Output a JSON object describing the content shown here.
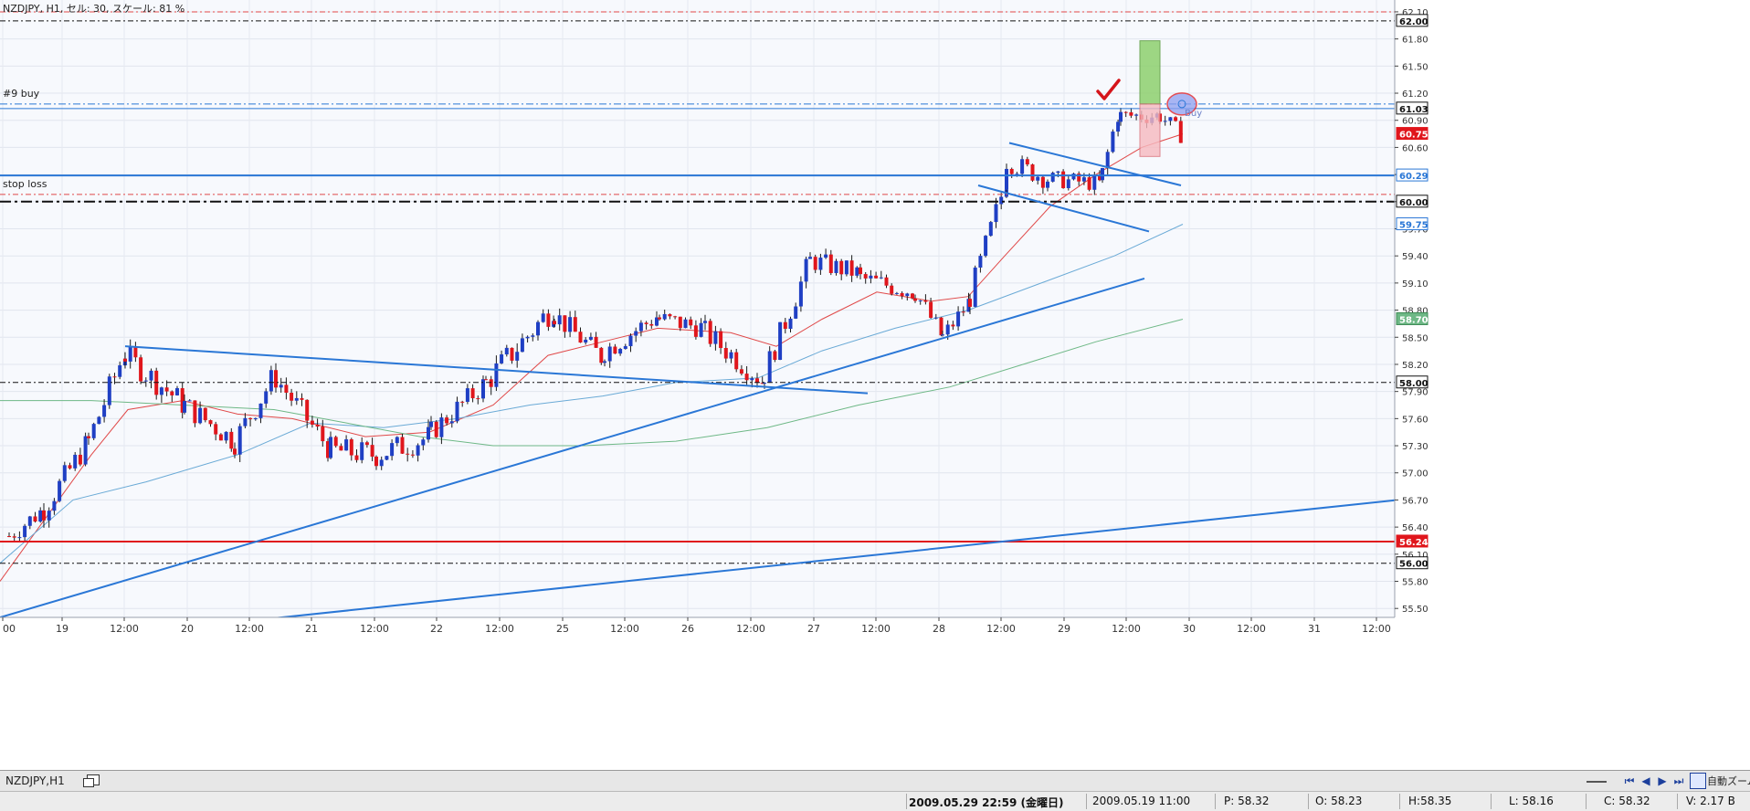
{
  "header": {
    "info": "NZDJPY, H1, セル: 30, スケール: 81 %"
  },
  "line_labels": {
    "buy": "#9 buy",
    "stop": "stop loss"
  },
  "tabbar": {
    "tab_label": "NZDJPY,H1",
    "autozoom_label": "自動ズーム"
  },
  "statusbar": {
    "current_time": "2009.05.29 22:59 (金曜日)",
    "bar_time": "2009.05.19 11:00",
    "p": "P: 58.32",
    "o": "O: 58.23",
    "h": "H:58.35",
    "l": "L: 58.16",
    "c": "C: 58.32",
    "v": "V: 2.17 B"
  },
  "colors": {
    "bull": "#1f3fc4",
    "bear": "#e0161c",
    "ma_fast": "#e04848",
    "ma_mid": "#6aaad6",
    "ma_slow": "#6eb886",
    "trendline": "#2a77d6"
  },
  "chart_data": {
    "type": "candlestick",
    "symbol": "NZDJPY",
    "timeframe": "H1",
    "ylim": [
      55.3,
      62.15
    ],
    "y_ticks": [
      "62.10",
      "61.80",
      "61.50",
      "61.20",
      "60.90",
      "60.60",
      "60.30",
      "60.00",
      "59.70",
      "59.40",
      "59.10",
      "58.80",
      "58.50",
      "58.20",
      "57.90",
      "57.60",
      "57.30",
      "57.00",
      "56.70",
      "56.40",
      "56.10",
      "55.80",
      "55.50"
    ],
    "x_ticks": [
      "00",
      "19",
      "12:00",
      "20",
      "12:00",
      "21",
      "12:00",
      "22",
      "12:00",
      "25",
      "12:00",
      "26",
      "12:00",
      "27",
      "12:00",
      "28",
      "12:00",
      "29",
      "12:00",
      "30",
      "12:00",
      "31",
      "12:00"
    ],
    "price_labels": [
      {
        "value": 62.0,
        "text": "62.00",
        "style": "dark"
      },
      {
        "value": 61.03,
        "text": "61.03",
        "style": "dark"
      },
      {
        "value": 60.75,
        "text": "60.75",
        "style": "red"
      },
      {
        "value": 60.29,
        "text": "60.29",
        "style": "blue"
      },
      {
        "value": 60.0,
        "text": "60.00",
        "style": "dark"
      },
      {
        "value": 59.75,
        "text": "59.75",
        "style": "blue"
      },
      {
        "value": 58.7,
        "text": "58.70",
        "style": "green"
      },
      {
        "value": 58.0,
        "text": "58.00",
        "style": "dark"
      },
      {
        "value": 56.24,
        "text": "56.24",
        "style": "red"
      },
      {
        "value": 56.0,
        "text": "56.00",
        "style": "dark"
      }
    ],
    "horizontal_lines": [
      {
        "value": 62.1,
        "color": "#e04848",
        "dash": "6,3,2,3",
        "width": 1
      },
      {
        "value": 62.0,
        "color": "#111111",
        "dash": "6,3,2,3",
        "width": 1
      },
      {
        "value": 61.08,
        "color": "#2a77d6",
        "dash": "8,3,2,3",
        "width": 1
      },
      {
        "value": 61.03,
        "color": "#2a77d6",
        "dash": "",
        "width": 1
      },
      {
        "value": 60.29,
        "color": "#2a77d6",
        "dash": "",
        "width": 2
      },
      {
        "value": 60.08,
        "color": "#e04848",
        "dash": "6,3,2,3",
        "width": 1
      },
      {
        "value": 60.0,
        "color": "#111111",
        "dash": "12,4,3,4",
        "width": 2
      },
      {
        "value": 58.0,
        "color": "#111111",
        "dash": "6,3,2,3",
        "width": 1
      },
      {
        "value": 56.24,
        "color": "#e0161c",
        "dash": "",
        "width": 2
      },
      {
        "value": 56.0,
        "color": "#111111",
        "dash": "6,3,2,3",
        "width": 1
      }
    ],
    "candle_segments": [
      {
        "x0": 8,
        "x1": 46,
        "v0": 56.3,
        "v1": 56.6,
        "noise": 0.12
      },
      {
        "x0": 46,
        "x1": 95,
        "v0": 56.6,
        "v1": 57.35,
        "noise": 0.14
      },
      {
        "x0": 95,
        "x1": 135,
        "v0": 57.35,
        "v1": 58.35,
        "noise": 0.16
      },
      {
        "x0": 135,
        "x1": 200,
        "v0": 58.3,
        "v1": 57.75,
        "noise": 0.15
      },
      {
        "x0": 200,
        "x1": 255,
        "v0": 57.75,
        "v1": 57.35,
        "noise": 0.14
      },
      {
        "x0": 255,
        "x1": 300,
        "v0": 57.35,
        "v1": 58.1,
        "noise": 0.15
      },
      {
        "x0": 300,
        "x1": 360,
        "v0": 58.05,
        "v1": 57.25,
        "noise": 0.14
      },
      {
        "x0": 360,
        "x1": 410,
        "v0": 57.25,
        "v1": 57.2,
        "noise": 0.15
      },
      {
        "x0": 410,
        "x1": 470,
        "v0": 57.2,
        "v1": 57.4,
        "noise": 0.15
      },
      {
        "x0": 470,
        "x1": 530,
        "v0": 57.45,
        "v1": 58.0,
        "noise": 0.13
      },
      {
        "x0": 530,
        "x1": 605,
        "v0": 58.0,
        "v1": 58.85,
        "noise": 0.16
      },
      {
        "x0": 605,
        "x1": 660,
        "v0": 58.75,
        "v1": 58.25,
        "noise": 0.13
      },
      {
        "x0": 660,
        "x1": 720,
        "v0": 58.35,
        "v1": 58.75,
        "noise": 0.13
      },
      {
        "x0": 720,
        "x1": 770,
        "v0": 58.7,
        "v1": 58.6,
        "noise": 0.12
      },
      {
        "x0": 770,
        "x1": 835,
        "v0": 58.55,
        "v1": 58.0,
        "noise": 0.14
      },
      {
        "x0": 835,
        "x1": 885,
        "v0": 58.1,
        "v1": 59.35,
        "noise": 0.14
      },
      {
        "x0": 885,
        "x1": 940,
        "v0": 59.35,
        "v1": 59.2,
        "noise": 0.12
      },
      {
        "x0": 940,
        "x1": 1000,
        "v0": 59.15,
        "v1": 59.0,
        "noise": 0.12
      },
      {
        "x0": 1000,
        "x1": 1030,
        "v0": 59.0,
        "v1": 58.5,
        "noise": 0.12
      },
      {
        "x0": 1030,
        "x1": 1060,
        "v0": 58.5,
        "v1": 58.9,
        "noise": 0.11
      },
      {
        "x0": 1060,
        "x1": 1100,
        "v0": 58.95,
        "v1": 60.25,
        "noise": 0.14
      },
      {
        "x0": 1100,
        "x1": 1145,
        "v0": 60.45,
        "v1": 60.25,
        "noise": 0.12
      },
      {
        "x0": 1145,
        "x1": 1205,
        "v0": 60.25,
        "v1": 60.2,
        "noise": 0.1
      },
      {
        "x0": 1205,
        "x1": 1225,
        "v0": 60.3,
        "v1": 61.1,
        "noise": 0.14
      },
      {
        "x0": 1225,
        "x1": 1268,
        "v0": 60.95,
        "v1": 60.95,
        "noise": 0.1
      },
      {
        "x0": 1268,
        "x1": 1296,
        "v0": 60.95,
        "v1": 60.7,
        "noise": 0.1
      }
    ],
    "moving_averages": [
      {
        "name": "fast",
        "color": "#e04848",
        "points": [
          [
            0,
            55.8
          ],
          [
            50,
            56.5
          ],
          [
            100,
            57.2
          ],
          [
            140,
            57.7
          ],
          [
            200,
            57.8
          ],
          [
            260,
            57.65
          ],
          [
            320,
            57.6
          ],
          [
            400,
            57.4
          ],
          [
            470,
            57.45
          ],
          [
            540,
            57.75
          ],
          [
            600,
            58.3
          ],
          [
            660,
            58.45
          ],
          [
            720,
            58.6
          ],
          [
            800,
            58.55
          ],
          [
            850,
            58.4
          ],
          [
            900,
            58.7
          ],
          [
            960,
            59.0
          ],
          [
            1020,
            58.9
          ],
          [
            1060,
            58.95
          ],
          [
            1100,
            59.4
          ],
          [
            1150,
            59.95
          ],
          [
            1200,
            60.3
          ],
          [
            1250,
            60.6
          ],
          [
            1295,
            60.75
          ]
        ]
      },
      {
        "name": "mid",
        "color": "#6aaad6",
        "points": [
          [
            0,
            56.0
          ],
          [
            80,
            56.7
          ],
          [
            160,
            56.9
          ],
          [
            260,
            57.2
          ],
          [
            340,
            57.55
          ],
          [
            420,
            57.5
          ],
          [
            500,
            57.6
          ],
          [
            580,
            57.75
          ],
          [
            660,
            57.85
          ],
          [
            740,
            58.0
          ],
          [
            830,
            58.05
          ],
          [
            900,
            58.35
          ],
          [
            980,
            58.6
          ],
          [
            1060,
            58.8
          ],
          [
            1140,
            59.1
          ],
          [
            1220,
            59.4
          ],
          [
            1295,
            59.75
          ]
        ]
      },
      {
        "name": "slow",
        "color": "#6eb886",
        "points": [
          [
            0,
            57.8
          ],
          [
            100,
            57.8
          ],
          [
            200,
            57.75
          ],
          [
            300,
            57.7
          ],
          [
            380,
            57.55
          ],
          [
            460,
            57.4
          ],
          [
            540,
            57.3
          ],
          [
            640,
            57.3
          ],
          [
            740,
            57.35
          ],
          [
            840,
            57.5
          ],
          [
            940,
            57.75
          ],
          [
            1040,
            57.95
          ],
          [
            1120,
            58.2
          ],
          [
            1200,
            58.45
          ],
          [
            1295,
            58.7
          ]
        ]
      }
    ],
    "trend_lines": [
      {
        "x0": 0,
        "v0": 55.4,
        "x1": 1253,
        "v1": 59.15,
        "width": 2
      },
      {
        "x0": 120,
        "v0": 55.2,
        "x1": 1530,
        "v1": 56.7,
        "width": 2
      },
      {
        "x0": 137,
        "v0": 58.4,
        "x1": 950,
        "v1": 57.88,
        "width": 2
      },
      {
        "x0": 1105,
        "v0": 60.65,
        "x1": 1293,
        "v1": 60.18,
        "width": 2
      },
      {
        "x0": 1071,
        "v0": 60.18,
        "x1": 1258,
        "v1": 59.67,
        "width": 2
      }
    ],
    "buy_marker": {
      "x": 1294,
      "value": 61.08,
      "label": "Buy"
    },
    "target_box": {
      "x": 1248,
      "width": 22,
      "top": 61.78,
      "bottom": 61.08,
      "color": "#8ed06e"
    },
    "risk_box": {
      "x": 1248,
      "width": 22,
      "top": 61.08,
      "bottom": 60.5,
      "color": "#f6b9bf"
    },
    "checkmark": {
      "x": 1213,
      "value": 61.2
    }
  }
}
